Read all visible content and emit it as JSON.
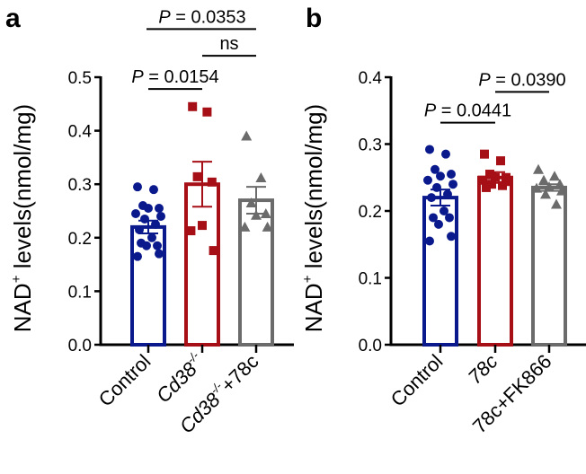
{
  "chart_data": [
    {
      "panel_label": "a",
      "type": "bar",
      "ylabel": "NAD",
      "ylabel_sup": "+",
      "ylabel_rest": " levels(nmol/mg)",
      "ylim": [
        0,
        0.5
      ],
      "yticks": [
        "0.0",
        "0.1",
        "0.2",
        "0.3",
        "0.4",
        "0.5"
      ],
      "ytick_values": [
        0,
        0.1,
        0.2,
        0.3,
        0.4,
        0.5
      ],
      "categories": [
        {
          "label": "Control",
          "italic": "",
          "sup": "",
          "suffix": ""
        },
        {
          "label": "",
          "italic": "Cd38",
          "sup": "-/-",
          "suffix": ""
        },
        {
          "label": "",
          "italic": "Cd38",
          "sup": "-/-",
          "suffix": "+78c"
        }
      ],
      "series": [
        {
          "name": "Control",
          "color": "#0a1a8c",
          "marker": "circle",
          "mean": 0.22,
          "sem": 0.012,
          "points": [
            0.295,
            0.29,
            0.26,
            0.255,
            0.255,
            0.245,
            0.24,
            0.235,
            0.225,
            0.215,
            0.2,
            0.19,
            0.185,
            0.185,
            0.17,
            0.165
          ]
        },
        {
          "name": "Cd38-/-",
          "color": "#a50f15",
          "marker": "square",
          "mean": 0.3,
          "sem": 0.042,
          "points": [
            0.445,
            0.435,
            0.314,
            0.304,
            0.223,
            0.213,
            0.176
          ]
        },
        {
          "name": "Cd38-/-+78c",
          "color": "#6b6b6b",
          "marker": "triangle",
          "mean": 0.27,
          "sem": 0.025,
          "points": [
            0.39,
            0.312,
            0.265,
            0.245,
            0.242,
            0.22,
            0.22
          ]
        }
      ],
      "annotations": [
        {
          "from": 0,
          "to": 1,
          "p_prefix": "P",
          "text": " = 0.0154",
          "level": 0.478
        },
        {
          "from": 1,
          "to": 2,
          "p_prefix": "",
          "text": "ns",
          "level": 0.54
        },
        {
          "from": 0,
          "to": 2,
          "p_prefix": "P",
          "text": " = 0.0353",
          "level": 0.59
        }
      ]
    },
    {
      "panel_label": "b",
      "type": "bar",
      "ylabel": "NAD",
      "ylabel_sup": "+",
      "ylabel_rest": " levels(nmol/mg)",
      "ylim": [
        0,
        0.4
      ],
      "yticks": [
        "0.0",
        "0.1",
        "0.2",
        "0.3",
        "0.4"
      ],
      "ytick_values": [
        0,
        0.1,
        0.2,
        0.3,
        0.4
      ],
      "categories": [
        {
          "label": "Control",
          "italic": "",
          "sup": "",
          "suffix": ""
        },
        {
          "label": "",
          "italic": "78c",
          "sup": "",
          "suffix": ""
        },
        {
          "label": "78c+FK866",
          "italic": "",
          "sup": "",
          "suffix": ""
        }
      ],
      "series": [
        {
          "name": "Control",
          "color": "#0a1a8c",
          "marker": "circle",
          "mean": 0.22,
          "sem": 0.012,
          "points": [
            0.292,
            0.285,
            0.262,
            0.255,
            0.252,
            0.246,
            0.24,
            0.235,
            0.225,
            0.22,
            0.2,
            0.19,
            0.19,
            0.18,
            0.162,
            0.155
          ]
        },
        {
          "name": "78c",
          "color": "#a50f15",
          "marker": "square",
          "mean": 0.25,
          "sem": 0.008,
          "points": [
            0.285,
            0.275,
            0.255,
            0.25,
            0.25,
            0.246,
            0.244,
            0.24,
            0.238,
            0.235
          ]
        },
        {
          "name": "78c+FK866",
          "color": "#6b6b6b",
          "marker": "triangle",
          "mean": 0.235,
          "sem": 0.005,
          "points": [
            0.262,
            0.252,
            0.246,
            0.24,
            0.236,
            0.234,
            0.23,
            0.225,
            0.21
          ]
        }
      ],
      "annotations": [
        {
          "from": 0,
          "to": 1,
          "p_prefix": "P",
          "text": " = 0.0441",
          "level": 0.332
        },
        {
          "from": 1,
          "to": 2,
          "p_prefix": "P",
          "text": " = 0.0390",
          "level": 0.378
        }
      ]
    }
  ]
}
